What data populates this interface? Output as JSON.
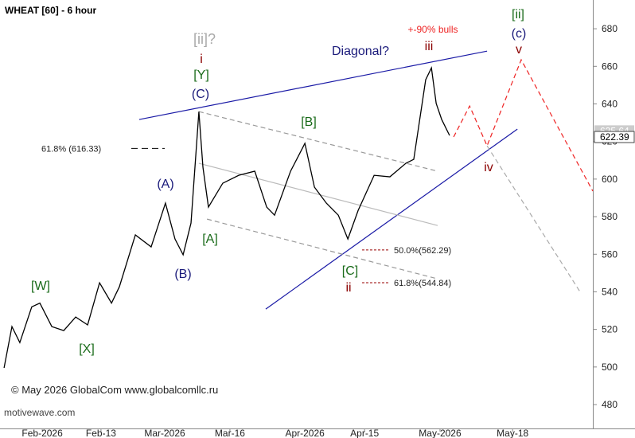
{
  "chart_data": {
    "type": "line",
    "title": "WHEAT [60] - 6 hour",
    "x": [
      1.7,
      5,
      8.3,
      13.3,
      16.7,
      21.7,
      26.7,
      31.7,
      36.7,
      41.7,
      46.7,
      50,
      56.7,
      63.3,
      69.3,
      73.3,
      76.7,
      80,
      83.3,
      85,
      87.3,
      93.3,
      100,
      106.7,
      111.7,
      115,
      121.7,
      127.7,
      131.7,
      136.7,
      141.7,
      145.7,
      150,
      156.7,
      163.3,
      170,
      173.3,
      178.3,
      180.7,
      182.7,
      185,
      188.3
    ],
    "values": [
      499.5,
      521.5,
      513,
      532,
      534,
      521.5,
      519.4,
      526.6,
      522.4,
      544.8,
      534,
      542.7,
      570.3,
      563.9,
      587.2,
      568.1,
      559.7,
      576.6,
      635.9,
      606.3,
      585.1,
      597.8,
      602,
      604.2,
      585.1,
      580.8,
      604.2,
      619,
      595.7,
      587.2,
      580.8,
      568.1,
      583.3,
      602,
      601.2,
      608.4,
      610.5,
      652.9,
      659.2,
      640.2,
      631.7,
      623.2
    ],
    "color": "#000000",
    "xlim": [
      0,
      248.3
    ],
    "ylim": [
      467.3,
      695.3
    ],
    "xticks": [
      {
        "value": 17.7,
        "label": "Feb-2026"
      },
      {
        "value": 42.3,
        "label": "Feb-13"
      },
      {
        "value": 69,
        "label": "Mar-2026"
      },
      {
        "value": 96.3,
        "label": "Mar-16"
      },
      {
        "value": 127.7,
        "label": "Apr-2026"
      },
      {
        "value": 152.7,
        "label": "Apr-15"
      },
      {
        "value": 184.3,
        "label": "May-2026"
      },
      {
        "value": 214.7,
        "label": "May-18"
      }
    ],
    "yticks": [
      480,
      500,
      520,
      540,
      560,
      580,
      600,
      620,
      640,
      660,
      680
    ],
    "price_labels": [
      625.64,
      622.39
    ],
    "fib_levels": [
      {
        "label": "61.8% (616.33)",
        "value": 616.33,
        "color": "#000000"
      },
      {
        "label": "50.0%(562.29)",
        "value": 562.29,
        "color": "#990000"
      },
      {
        "label": "61.8%(544.84)",
        "value": 544.84,
        "color": "#990000"
      }
    ],
    "lines": [
      {
        "color": "#1a1aa6",
        "dashed": false,
        "x": [
          58.3,
          204
        ],
        "y": [
          631.7,
          668.1
        ]
      },
      {
        "color": "#1a1aa6",
        "dashed": false,
        "x": [
          111.3,
          216.7
        ],
        "y": [
          530.8,
          626.6
        ]
      },
      {
        "color": "#999999",
        "dashed": true,
        "x": [
          83.3,
          183.3
        ],
        "y": [
          635.9,
          604.2
        ]
      },
      {
        "color": "#bbbbbb",
        "dashed": false,
        "x": [
          83.3,
          183.3
        ],
        "y": [
          608.4,
          575.3
        ]
      },
      {
        "color": "#999999",
        "dashed": true,
        "x": [
          86.7,
          183.3
        ],
        "y": [
          578.7,
          546.9
        ]
      },
      {
        "color": "#ee2222",
        "dashed": true,
        "x": [
          190,
          196.7,
          204,
          218.3,
          248.3
        ],
        "y": [
          622.4,
          638.9,
          617.7,
          663.5,
          593.6
        ]
      },
      {
        "color": "#aaaaaa",
        "dashed": true,
        "x": [
          204,
          243.3
        ],
        "y": [
          617.7,
          539.3
        ]
      }
    ],
    "annotations": [
      "[ii]?",
      "i",
      "[Y]",
      "(C)",
      "(A)",
      "(B)",
      "[A]",
      "[W]",
      "[X]",
      "[B]",
      "[C]",
      "ii",
      "Diagonal?",
      "+-90% bulls",
      "iii",
      "[ii]",
      "(c)",
      "v",
      "iv"
    ],
    "copyright": "© May 2026 GlobalCom www.globalcomllc.ru",
    "source": "motivewave.com"
  }
}
